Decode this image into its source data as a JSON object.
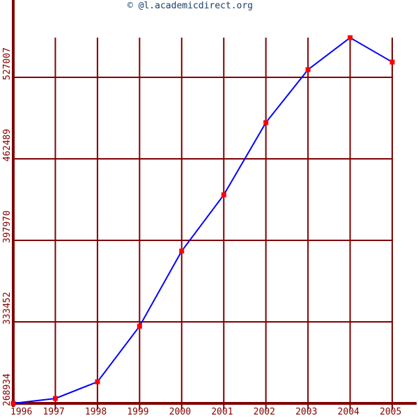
{
  "chart_data": {
    "type": "line",
    "title": "© @l.academicdirect.org",
    "xlabel": "",
    "ylabel": "",
    "x": [
      "1996",
      "1997",
      "1998",
      "1999",
      "2000",
      "2001",
      "2002",
      "2003",
      "2004",
      "2005"
    ],
    "series": [
      {
        "values": [
          268934,
          272800,
          286000,
          330000,
          389500,
          434000,
          491200,
          533100,
          558400,
          539100
        ]
      }
    ],
    "y_tick_labels": [
      "268934",
      "333452",
      "397970",
      "462489",
      "527007"
    ],
    "y_ticks": [
      268934,
      333452,
      397970,
      462489,
      527007
    ],
    "ylim": [
      268934,
      558400
    ],
    "grid": true,
    "colors": {
      "axis": "#800000",
      "grid": "#800000",
      "line": "#0000ff",
      "marker": "#ff0000",
      "title": "#1a3f6a"
    }
  }
}
